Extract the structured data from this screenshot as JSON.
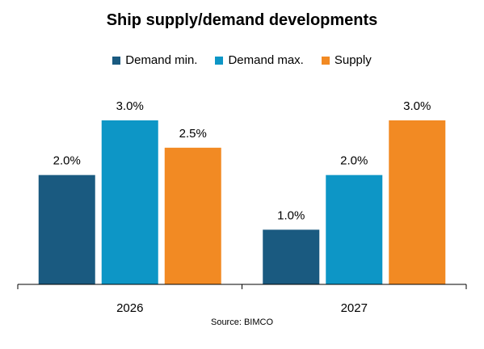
{
  "chart_data": {
    "type": "bar",
    "title": "Ship supply/demand  developments",
    "categories": [
      "2026",
      "2027"
    ],
    "series": [
      {
        "name": "Demand min.",
        "values": [
          2.0,
          1.0
        ],
        "labels": [
          "2.0%",
          "1.0%"
        ],
        "color": "#1a5a80"
      },
      {
        "name": "Demand max.",
        "values": [
          3.0,
          2.0
        ],
        "labels": [
          "3.0%",
          "2.0%"
        ],
        "color": "#0d96c6"
      },
      {
        "name": "Supply",
        "values": [
          2.5,
          3.0
        ],
        "labels": [
          "2.5%",
          "3.0%"
        ],
        "color": "#f28a23"
      }
    ],
    "ylim": [
      0,
      3.0
    ],
    "legend_position": "top",
    "grid": false,
    "source": "Source: BIMCO"
  }
}
